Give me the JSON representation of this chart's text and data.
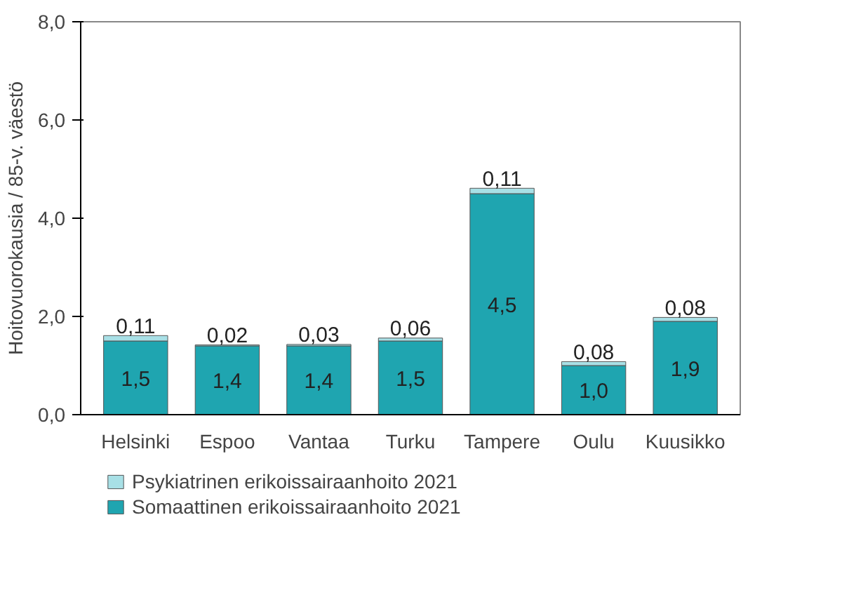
{
  "chart_data": {
    "type": "bar",
    "stacked": true,
    "ylabel": "Hoitovuorokausia / 85-v. väestö",
    "categories": [
      "Helsinki",
      "Espoo",
      "Vantaa",
      "Turku",
      "Tampere",
      "Oulu",
      "Kuusikko"
    ],
    "series": [
      {
        "name": "Somaattinen erikoissairaanhoito 2021",
        "color": "#1fa5b0",
        "values": [
          1.5,
          1.4,
          1.4,
          1.5,
          4.5,
          1.0,
          1.9
        ],
        "value_labels": [
          "1,5",
          "1,4",
          "1,4",
          "1,5",
          "4,5",
          "1,0",
          "1,9"
        ]
      },
      {
        "name": "Psykiatrinen erikoissairaanhoito 2021",
        "color": "#a8e0e6",
        "values": [
          0.11,
          0.02,
          0.03,
          0.06,
          0.11,
          0.08,
          0.08
        ],
        "value_labels": [
          "0,11",
          "0,02",
          "0,03",
          "0,06",
          "0,11",
          "0,08",
          "0,08"
        ]
      }
    ],
    "ylim": [
      0,
      8
    ],
    "yticks": [
      {
        "value": 0,
        "label": "0,0"
      },
      {
        "value": 2,
        "label": "2,0"
      },
      {
        "value": 4,
        "label": "4,0"
      },
      {
        "value": 6,
        "label": "6,0"
      },
      {
        "value": 8,
        "label": "8,0"
      }
    ],
    "grid": false,
    "legend": "bottom"
  }
}
